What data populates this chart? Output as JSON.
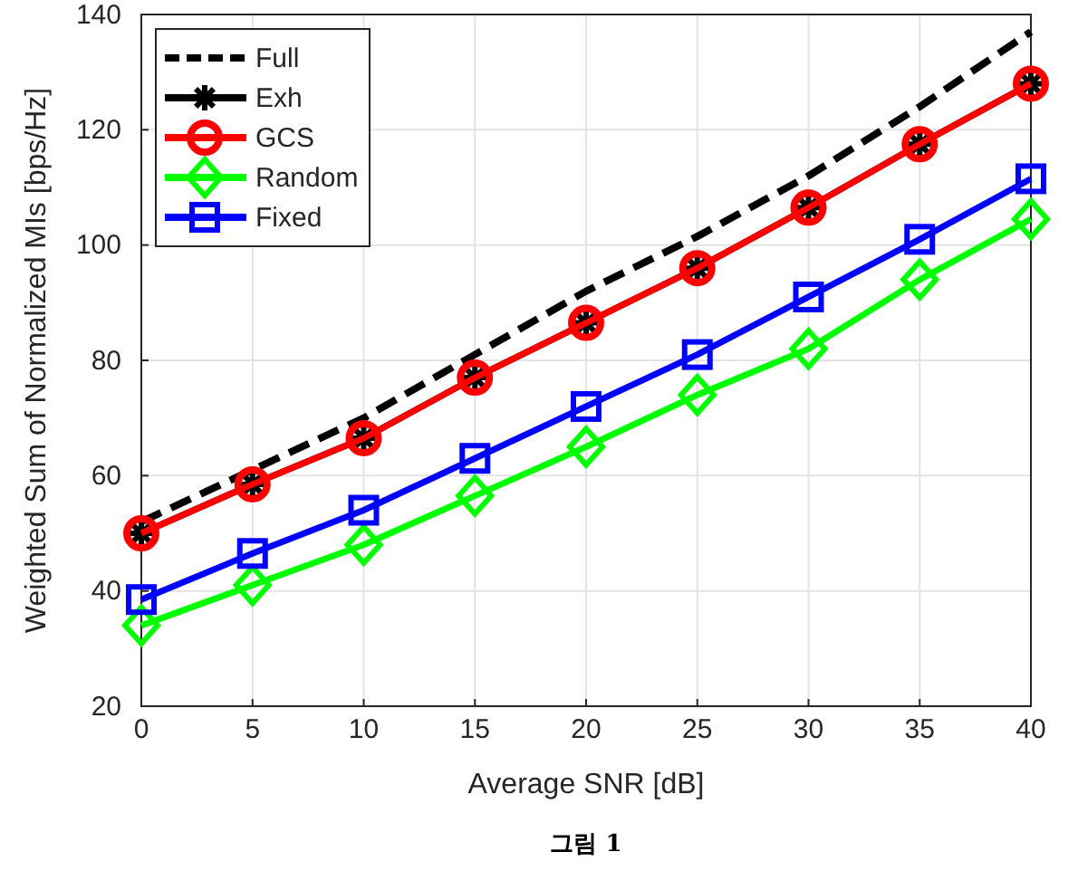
{
  "chart_data": {
    "type": "line",
    "xlabel": "Average SNR [dB]",
    "ylabel": "Weighted Sum of Normalized MIs [bps/Hz]",
    "x": [
      0,
      5,
      10,
      15,
      20,
      25,
      30,
      35,
      40
    ],
    "series": [
      {
        "name": "Full",
        "color": "#000000",
        "line_style": "dashed",
        "marker": "none",
        "values": [
          52,
          61,
          70,
          81,
          92,
          101.5,
          112,
          124,
          137
        ]
      },
      {
        "name": "Exh",
        "color": "#000000",
        "line_style": "solid",
        "marker": "cross",
        "values": [
          50,
          58.5,
          66.5,
          77,
          86.5,
          96,
          106.5,
          117.5,
          128
        ]
      },
      {
        "name": "GCS",
        "color": "#ff0000",
        "line_style": "solid",
        "marker": "circle",
        "values": [
          50,
          58.5,
          66.5,
          77,
          86.5,
          96,
          106.5,
          117.5,
          128
        ]
      },
      {
        "name": "Random",
        "color": "#00ff00",
        "line_style": "solid",
        "marker": "diamond",
        "values": [
          34,
          41,
          48,
          56.5,
          65,
          74,
          82,
          94,
          104.5
        ]
      },
      {
        "name": "Fixed",
        "color": "#0000ff",
        "line_style": "solid",
        "marker": "square",
        "values": [
          38.5,
          46.5,
          54,
          63,
          72,
          81,
          91,
          101,
          111.5
        ]
      }
    ],
    "xlim": [
      0,
      40
    ],
    "xticks": [
      0,
      5,
      10,
      15,
      20,
      25,
      30,
      35,
      40
    ],
    "ylim": [
      20,
      140
    ],
    "yticks": [
      20,
      40,
      60,
      80,
      100,
      120,
      140
    ],
    "grid": true,
    "legend": "top left",
    "annotations": [
      "그림 1"
    ]
  }
}
